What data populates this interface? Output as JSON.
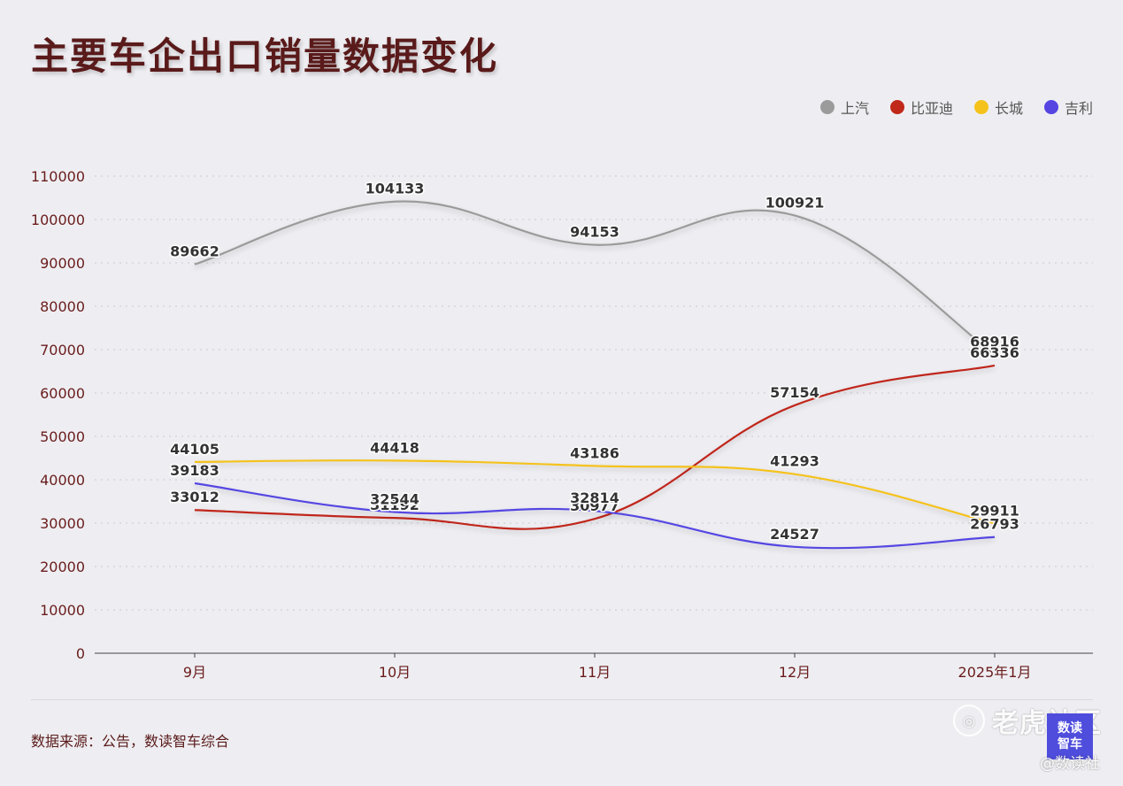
{
  "title": "主要车企出口销量数据变化",
  "source": "数据来源：公告，数读智车综合",
  "watermark": {
    "site": "老虎社区",
    "handle": "@数读社",
    "badge_line1": "数读",
    "badge_line2": "智车"
  },
  "chart_data": {
    "type": "line",
    "title": "主要车企出口销量数据变化",
    "categories": [
      "9月",
      "10月",
      "11月",
      "12月",
      "2025年1月"
    ],
    "ylim": [
      0,
      110000
    ],
    "yticks": [
      0,
      10000,
      20000,
      30000,
      40000,
      50000,
      60000,
      70000,
      80000,
      90000,
      100000,
      110000
    ],
    "grid": true,
    "legend_position": "top-right",
    "series": [
      {
        "name": "上汽",
        "color": "#9b9b9b",
        "values": [
          89662,
          104133,
          94153,
          100921,
          68916
        ]
      },
      {
        "name": "比亚迪",
        "color": "#c0281a",
        "values": [
          33012,
          31192,
          30977,
          57154,
          66336
        ]
      },
      {
        "name": "长城",
        "color": "#f5c21b",
        "values": [
          44105,
          44418,
          43186,
          41293,
          29911
        ]
      },
      {
        "name": "吉利",
        "color": "#5546e2",
        "values": [
          39183,
          32544,
          32814,
          24527,
          26793
        ]
      }
    ]
  }
}
